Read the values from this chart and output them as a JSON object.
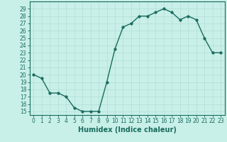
{
  "x": [
    0,
    1,
    2,
    3,
    4,
    5,
    6,
    7,
    8,
    9,
    10,
    11,
    12,
    13,
    14,
    15,
    16,
    17,
    18,
    19,
    20,
    21,
    22,
    23
  ],
  "y": [
    20,
    19.5,
    17.5,
    17.5,
    17,
    15.5,
    15,
    15,
    15,
    19,
    23.5,
    26.5,
    27,
    28,
    28,
    28.5,
    29,
    28.5,
    27.5,
    28,
    27.5,
    25,
    23,
    23
  ],
  "line_color": "#1a6b5e",
  "marker_color": "#1a6b5e",
  "bg_color": "#c8f0e8",
  "grid_color": "#b0ddd4",
  "xlabel": "Humidex (Indice chaleur)",
  "xlim": [
    -0.5,
    23.5
  ],
  "ylim": [
    14.5,
    30
  ],
  "yticks": [
    15,
    16,
    17,
    18,
    19,
    20,
    21,
    22,
    23,
    24,
    25,
    26,
    27,
    28,
    29
  ],
  "xticks": [
    0,
    1,
    2,
    3,
    4,
    5,
    6,
    7,
    8,
    9,
    10,
    11,
    12,
    13,
    14,
    15,
    16,
    17,
    18,
    19,
    20,
    21,
    22,
    23
  ],
  "xlabel_fontsize": 7,
  "tick_fontsize": 5.5,
  "line_width": 1.0,
  "marker_size": 2.5
}
